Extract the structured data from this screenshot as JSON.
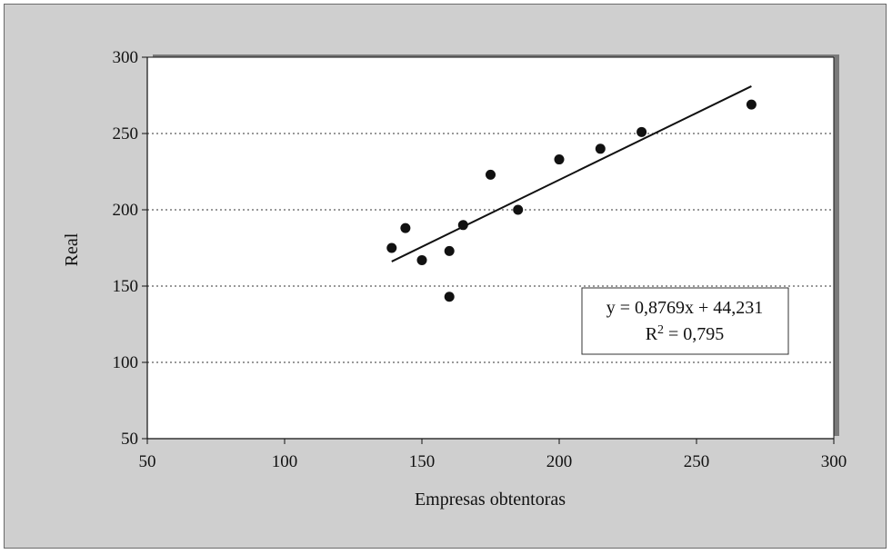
{
  "chart_data": {
    "type": "scatter",
    "title": "",
    "xlabel": "Empresas obtentoras",
    "ylabel": "Real",
    "xlim": [
      50,
      300
    ],
    "ylim": [
      50,
      300
    ],
    "xticks": [
      "50",
      "100",
      "150",
      "200",
      "250",
      "300"
    ],
    "yticks": [
      "50",
      "100",
      "150",
      "200",
      "250",
      "300"
    ],
    "grid": "horizontal dotted",
    "points": [
      {
        "x": 139,
        "y": 175
      },
      {
        "x": 144,
        "y": 188
      },
      {
        "x": 150,
        "y": 167
      },
      {
        "x": 160,
        "y": 173
      },
      {
        "x": 160,
        "y": 143
      },
      {
        "x": 165,
        "y": 190
      },
      {
        "x": 175,
        "y": 223
      },
      {
        "x": 185,
        "y": 200
      },
      {
        "x": 200,
        "y": 233
      },
      {
        "x": 215,
        "y": 240
      },
      {
        "x": 230,
        "y": 251
      },
      {
        "x": 270,
        "y": 269
      }
    ],
    "trendline": {
      "slope": 0.8769,
      "intercept": 44.231,
      "x_range": [
        139,
        270
      ]
    },
    "annotation": {
      "equation": "y = 0,8769x + 44,231",
      "r2_prefix": "R",
      "r2_sup": "2",
      "r2_suffix": " = 0,795"
    }
  },
  "colors": {
    "background": "#cfcfcf",
    "plot_area": "#ffffff",
    "marker": "#111111"
  }
}
